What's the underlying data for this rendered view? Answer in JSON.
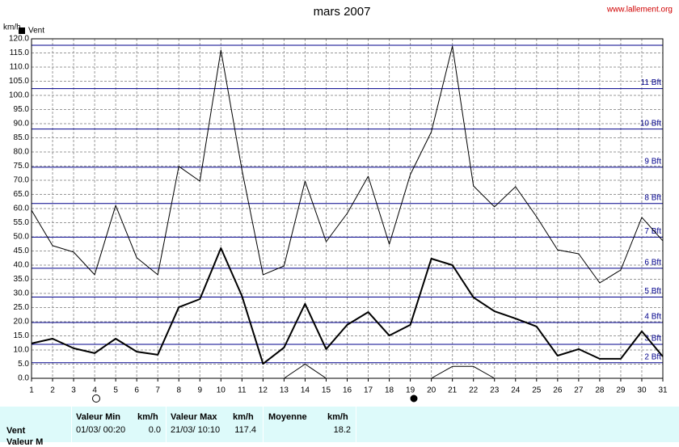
{
  "chart_data": {
    "type": "line",
    "title": "mars 2007",
    "source": "www.lallement.org",
    "y_label": "km/h",
    "x": [
      1,
      2,
      3,
      4,
      5,
      6,
      7,
      8,
      9,
      10,
      11,
      12,
      13,
      14,
      15,
      16,
      17,
      18,
      19,
      20,
      21,
      22,
      23,
      24,
      25,
      26,
      27,
      28,
      29,
      30,
      31
    ],
    "xlim": [
      1,
      31
    ],
    "xticks": [
      1,
      2,
      3,
      4,
      5,
      6,
      7,
      8,
      9,
      10,
      11,
      12,
      13,
      14,
      15,
      16,
      17,
      18,
      19,
      20,
      21,
      22,
      23,
      24,
      25,
      26,
      27,
      28,
      29,
      30,
      31
    ],
    "ylim": [
      0,
      120
    ],
    "yticks": [
      {
        "value": 0,
        "label": "0.0"
      },
      {
        "value": 5,
        "label": "5.0"
      },
      {
        "value": 10,
        "label": "10.0"
      },
      {
        "value": 15,
        "label": "15.0"
      },
      {
        "value": 20,
        "label": "20.0"
      },
      {
        "value": 25,
        "label": "25.0"
      },
      {
        "value": 30,
        "label": "30.0"
      },
      {
        "value": 35,
        "label": "35.0"
      },
      {
        "value": 40,
        "label": "40.0"
      },
      {
        "value": 45,
        "label": "45.0"
      },
      {
        "value": 50,
        "label": "50.0"
      },
      {
        "value": 55,
        "label": "55.0"
      },
      {
        "value": 60,
        "label": "60.0"
      },
      {
        "value": 65,
        "label": "65.0"
      },
      {
        "value": 70,
        "label": "70.0"
      },
      {
        "value": 75,
        "label": "75.0"
      },
      {
        "value": 80,
        "label": "80.0"
      },
      {
        "value": 85,
        "label": "85.0"
      },
      {
        "value": 90,
        "label": "90.0"
      },
      {
        "value": 95,
        "label": "95.0"
      },
      {
        "value": 100,
        "label": "100.0"
      },
      {
        "value": 105,
        "label": "105.0"
      },
      {
        "value": 110,
        "label": "110.0"
      },
      {
        "value": 115,
        "label": "115.0"
      },
      {
        "value": 120,
        "label": "120.0"
      }
    ],
    "grid": true,
    "legend": "top-left",
    "series": [
      {
        "name": "Vent",
        "color": "#000000",
        "width": 2,
        "values": [
          12.3,
          14,
          10.6,
          8.9,
          14,
          9.4,
          8.3,
          25.1,
          28,
          46,
          29.1,
          5.1,
          10.9,
          26.3,
          10.3,
          18.9,
          23.4,
          15.1,
          18.9,
          42.3,
          40,
          28.6,
          23.7,
          21.1,
          18.3,
          8,
          10.3,
          6.9,
          6.9,
          16.6,
          7.7
        ]
      },
      {
        "color": "#000000",
        "width": 1,
        "values": [
          59.4,
          46.9,
          44.6,
          36.6,
          61.1,
          42.6,
          36.6,
          74.9,
          69.7,
          116,
          73.7,
          36.6,
          39.7,
          69.7,
          48.3,
          58.3,
          71.4,
          47.4,
          72,
          87.1,
          117.4,
          68,
          60.6,
          67.7,
          57.1,
          45.4,
          44,
          33.7,
          38.3,
          56.9,
          48.6
        ]
      },
      {
        "color": "#000000",
        "width": 1,
        "values": [
          0,
          0,
          0,
          0,
          0,
          0,
          0,
          0,
          0,
          0,
          0,
          0,
          0,
          5,
          0,
          0,
          0,
          0,
          0,
          0,
          4.2,
          4.2,
          0,
          0,
          0,
          0,
          0,
          0,
          0,
          0,
          0
        ]
      }
    ],
    "bft_lines": {
      "color": "#00008b",
      "lines": [
        {
          "value": 5.5,
          "label": "2 Bft"
        },
        {
          "value": 12,
          "label": "3 Bft"
        },
        {
          "value": 19.7,
          "label": "4 Bft"
        },
        {
          "value": 28.7,
          "label": "5 Bft"
        },
        {
          "value": 38.9,
          "label": "6 Bft"
        },
        {
          "value": 49.9,
          "label": "7 Bft"
        },
        {
          "value": 61.8,
          "label": "8 Bft"
        },
        {
          "value": 74.6,
          "label": "9 Bft"
        },
        {
          "value": 88.1,
          "label": "10 Bft"
        },
        {
          "value": 102.4,
          "label": "11 Bft"
        },
        {
          "value": 117.7
        }
      ]
    }
  },
  "table": {
    "header": [
      "Valeur Min",
      "km/h",
      "Valeur Max",
      "km/h",
      "Moyenne",
      "km/h"
    ],
    "rows": [
      [
        "Vent",
        "01/03/ 00:20",
        "0.0",
        "21/03/ 10:10",
        "117.4",
        "18.2"
      ],
      [
        "Valeur M"
      ]
    ]
  }
}
